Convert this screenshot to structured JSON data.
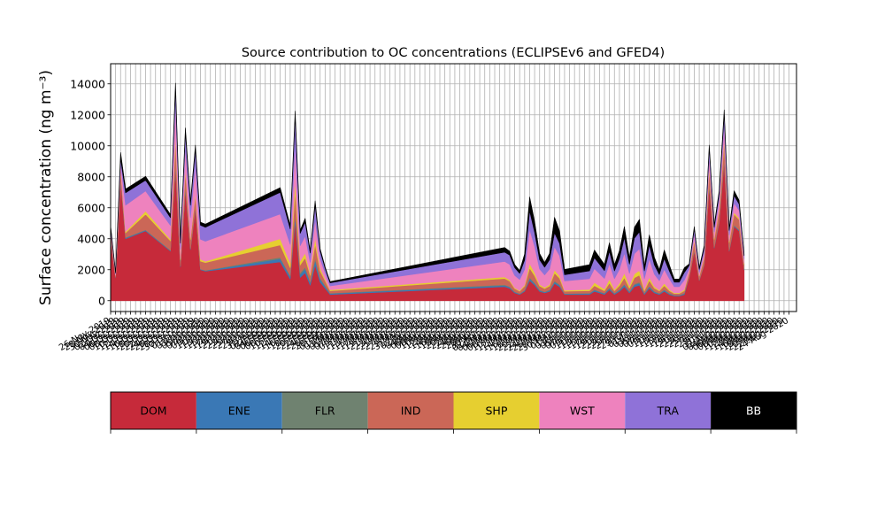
{
  "chart_data": {
    "type": "area",
    "title": "Source contribution to OC concentrations (ECLIPSEv6 and GFED4)",
    "xlabel": "",
    "ylabel": "Surface concentration (ng m⁻³)",
    "ylim": [
      -700,
      15300
    ],
    "yticks": [
      0,
      2000,
      4000,
      6000,
      8000,
      10000,
      12000,
      14000
    ],
    "grid": true,
    "stacked": true,
    "x_tick_labels_note": "dense overlapping rotated date labels",
    "x_tick_labels": [
      "26-Nov-2019",
      "28-Nov-2019",
      "30-Nov-2019",
      "02-Dec-2019",
      "04-Dec-2019",
      "06-Dec-2019",
      "08-Dec-2019",
      "10-Dec-2019",
      "12-Dec-2019",
      "14-Dec-2019",
      "16-Dec-2019",
      "18-Dec-2019",
      "20-Dec-2019",
      "22-Dec-2019",
      "24-Dec-2019",
      "26-Dec-2019",
      "28-Dec-2019",
      "30-Dec-2019",
      "01-Jan-2020",
      "03-Jan-2020",
      "05-Jan-2020",
      "07-Jan-2020",
      "09-Jan-2020",
      "11-Jan-2020",
      "13-Jan-2020",
      "15-Jan-2020",
      "17-Jan-2020",
      "19-Jan-2020",
      "21-Jan-2020",
      "23-Jan-2020",
      "25-Jan-2020",
      "27-Jan-2020",
      "29-Jan-2020",
      "31-Jan-2020",
      "02-Feb-2020",
      "04-Feb-2020",
      "06-Feb-2020",
      "08-Feb-2020",
      "10-Feb-2020",
      "12-Feb-2020",
      "14-Feb-2020",
      "16-Feb-2020",
      "18-Feb-2020",
      "20-Feb-2020",
      "22-Feb-2020",
      "24-Feb-2020",
      "26-Feb-2020",
      "28-Feb-2020",
      "01-Mar-2020",
      "03-Mar-2020",
      "05-Mar-2020",
      "07-Mar-2020",
      "09-Mar-2020",
      "11-Mar-2020",
      "13-Mar-2020",
      "15-Mar-2020",
      "17-Mar-2020",
      "19-Mar-2020",
      "21-Mar-2020",
      "23-Mar-2020",
      "25-Mar-2020",
      "27-Mar-2020",
      "29-Mar-2020",
      "31-Mar-2020",
      "02-Apr-2020",
      "04-Apr-2020",
      "06-Apr-2020",
      "08-Apr-2020",
      "10-Apr-2020",
      "12-Apr-2020",
      "14-Apr-2020",
      "16-Apr-2020",
      "18-Apr-2020",
      "20-Apr-2020",
      "22-Apr-2020",
      "24-Apr-2020",
      "26-Apr-2020",
      "28-Apr-2020",
      "30-Apr-2020",
      "02-May-2020",
      "04-May-2020",
      "06-May-2020",
      "08-May-2020",
      "10-May-2020",
      "12-May-2020",
      "14-May-2020",
      "16-May-2020",
      "18-May-2020",
      "20-May-2020",
      "22-May-2020",
      "24-May-2020",
      "26-May-2020",
      "28-May-2020",
      "30-May-2020",
      "01-Jun-2020",
      "03-Jun-2020",
      "05-Jun-2020",
      "07-Jun-2020",
      "09-Jun-2020",
      "11-Jun-2020",
      "13-Jun-2020",
      "15-Jun-2020",
      "17-Jun-2020",
      "19-Jun-2020",
      "21-Jun-2020",
      "23-Jun-2020",
      "25-Jun-2020",
      "27-Jun-2020",
      "29-Jun-2020",
      "01-Jul-2020",
      "03-Jul-2020",
      "05-Jul-2020",
      "07-Jul-2020",
      "09-Jul-2020",
      "11-Jul-2020",
      "13-Jul-2020",
      "15-Jul-2020",
      "17-Jul-2020",
      "19-Jul-2020",
      "21-Jul-2020",
      "23-Jul-2020",
      "25-Jul-2020",
      "27-Jul-2020",
      "29-Jul-2020",
      "31-Jul-2020",
      "02-Aug-2020",
      "04-Aug-2020",
      "06-Aug-2020",
      "08-Aug-2020",
      "10-Aug-2020",
      "12-Aug-2020",
      "14-Aug-2020",
      "16-Aug-2020",
      "18-Aug-2020",
      "20-Aug-2020",
      "22-Aug-2020",
      "24-Aug-2020"
    ],
    "x": [
      "26-Nov-2019",
      "28-Nov-2019",
      "30-Nov-2019",
      "02-Dec-2019",
      "10-Dec-2019",
      "20-Dec-2019",
      "22-Dec-2019",
      "24-Dec-2019",
      "26-Dec-2019",
      "28-Dec-2019",
      "30-Dec-2019",
      "01-Jan-2020",
      "03-Jan-2020",
      "02-Feb-2020",
      "06-Feb-2020",
      "08-Feb-2020",
      "10-Feb-2020",
      "12-Feb-2020",
      "14-Feb-2020",
      "16-Feb-2020",
      "18-Feb-2020",
      "20-Feb-2020",
      "22-Feb-2020",
      "02-May-2020",
      "04-May-2020",
      "06-May-2020",
      "08-May-2020",
      "10-May-2020",
      "12-May-2020",
      "14-May-2020",
      "16-May-2020",
      "18-May-2020",
      "20-May-2020",
      "22-May-2020",
      "24-May-2020",
      "26-May-2020",
      "05-Jun-2020",
      "07-Jun-2020",
      "09-Jun-2020",
      "11-Jun-2020",
      "13-Jun-2020",
      "15-Jun-2020",
      "17-Jun-2020",
      "19-Jun-2020",
      "21-Jun-2020",
      "23-Jun-2020",
      "25-Jun-2020",
      "27-Jun-2020",
      "29-Jun-2020",
      "01-Jul-2020",
      "03-Jul-2020",
      "05-Jul-2020",
      "07-Jul-2020",
      "09-Jul-2020",
      "11-Jul-2020",
      "13-Jul-2020",
      "15-Jul-2020",
      "17-Jul-2020",
      "19-Jul-2020",
      "21-Jul-2020",
      "23-Jul-2020",
      "25-Jul-2020",
      "27-Jul-2020",
      "29-Jul-2020",
      "31-Jul-2020",
      "02-Aug-2020",
      "04-Aug-2020",
      "06-Aug-2020"
    ],
    "series": [
      {
        "name": "DOM",
        "color": "#c62a3a",
        "values": [
          4000,
          1500,
          7700,
          4000,
          4500,
          3200,
          8600,
          2200,
          7200,
          3300,
          5900,
          2000,
          1900,
          2500,
          1400,
          5100,
          1500,
          1800,
          1000,
          2300,
          1200,
          800,
          400,
          900,
          800,
          500,
          400,
          600,
          1300,
          1000,
          600,
          500,
          600,
          1100,
          900,
          400,
          400,
          600,
          500,
          400,
          700,
          400,
          600,
          900,
          500,
          900,
          1000,
          400,
          800,
          500,
          400,
          600,
          400,
          300,
          300,
          400,
          1500,
          3200,
          1300,
          2300,
          7400,
          3400,
          5000,
          9000,
          3200,
          4800,
          4500,
          2000
        ]
      },
      {
        "name": "ENE",
        "color": "#3a78b5",
        "values": [
          50,
          20,
          80,
          50,
          50,
          40,
          90,
          30,
          80,
          40,
          60,
          30,
          40,
          200,
          150,
          300,
          200,
          250,
          150,
          300,
          180,
          120,
          60,
          80,
          70,
          50,
          40,
          60,
          120,
          100,
          60,
          50,
          60,
          110,
          90,
          40,
          60,
          80,
          70,
          60,
          90,
          60,
          80,
          120,
          70,
          120,
          130,
          60,
          100,
          70,
          50,
          80,
          60,
          40,
          40,
          60,
          20,
          30,
          20,
          30,
          60,
          40,
          50,
          70,
          40,
          50,
          50,
          30
        ]
      },
      {
        "name": "FLR",
        "color": "#6f8270",
        "values": [
          30,
          10,
          50,
          30,
          30,
          20,
          60,
          20,
          50,
          20,
          40,
          20,
          20,
          100,
          80,
          150,
          100,
          120,
          80,
          150,
          90,
          60,
          30,
          50,
          40,
          30,
          20,
          30,
          80,
          60,
          40,
          30,
          40,
          70,
          60,
          20,
          30,
          40,
          30,
          30,
          50,
          30,
          40,
          60,
          40,
          60,
          70,
          30,
          50,
          40,
          30,
          40,
          30,
          20,
          20,
          30,
          10,
          20,
          10,
          20,
          40,
          20,
          30,
          50,
          20,
          30,
          30,
          20
        ]
      },
      {
        "name": "IND",
        "color": "#cb6757",
        "values": [
          300,
          100,
          600,
          300,
          1000,
          600,
          1600,
          400,
          1000,
          600,
          800,
          500,
          500,
          800,
          500,
          1500,
          500,
          600,
          400,
          900,
          450,
          300,
          150,
          400,
          350,
          200,
          150,
          250,
          600,
          450,
          250,
          200,
          250,
          500,
          400,
          150,
          150,
          250,
          200,
          150,
          300,
          150,
          250,
          400,
          200,
          400,
          450,
          150,
          350,
          200,
          150,
          250,
          150,
          100,
          100,
          150,
          300,
          600,
          250,
          400,
          1000,
          500,
          700,
          1100,
          500,
          700,
          650,
          300
        ]
      },
      {
        "name": "SHP",
        "color": "#e6cf30",
        "values": [
          20,
          10,
          40,
          80,
          200,
          100,
          300,
          60,
          180,
          100,
          150,
          120,
          80,
          400,
          300,
          700,
          250,
          300,
          150,
          400,
          200,
          100,
          60,
          100,
          80,
          60,
          50,
          80,
          300,
          200,
          100,
          80,
          100,
          200,
          150,
          60,
          80,
          200,
          150,
          100,
          250,
          80,
          150,
          300,
          150,
          250,
          300,
          80,
          200,
          100,
          60,
          150,
          80,
          40,
          40,
          80,
          40,
          80,
          40,
          60,
          150,
          80,
          100,
          200,
          80,
          120,
          100,
          60
        ]
      },
      {
        "name": "WST",
        "color": "#ee82be",
        "values": [
          200,
          100,
          400,
          1700,
          1300,
          900,
          2000,
          600,
          1400,
          1300,
          1800,
          1300,
          1300,
          1600,
          1200,
          2300,
          1000,
          1100,
          700,
          1200,
          600,
          400,
          250,
          1000,
          1000,
          800,
          700,
          1000,
          2200,
          1700,
          1000,
          800,
          1000,
          1500,
          1300,
          600,
          700,
          900,
          800,
          700,
          1000,
          700,
          900,
          1300,
          800,
          1300,
          1400,
          700,
          1200,
          800,
          600,
          900,
          700,
          400,
          400,
          600,
          200,
          400,
          200,
          300,
          700,
          400,
          600,
          900,
          400,
          600,
          500,
          300
        ]
      },
      {
        "name": "TRA",
        "color": "#8f72d8",
        "values": [
          150,
          50,
          300,
          800,
          700,
          500,
          1000,
          400,
          900,
          800,
          1000,
          900,
          900,
          1400,
          1000,
          1800,
          800,
          900,
          600,
          900,
          500,
          300,
          200,
          600,
          600,
          500,
          400,
          600,
          1200,
          900,
          600,
          500,
          600,
          900,
          800,
          400,
          500,
          700,
          600,
          500,
          800,
          500,
          700,
          1000,
          600,
          1000,
          1100,
          500,
          900,
          600,
          400,
          700,
          500,
          300,
          300,
          500,
          200,
          300,
          200,
          300,
          500,
          300,
          400,
          700,
          300,
          500,
          400,
          200
        ]
      },
      {
        "name": "BB",
        "color": "#000000",
        "values": [
          100,
          50,
          400,
          250,
          250,
          200,
          400,
          150,
          350,
          200,
          300,
          200,
          200,
          300,
          250,
          400,
          200,
          250,
          150,
          300,
          150,
          100,
          80,
          300,
          250,
          200,
          180,
          400,
          900,
          700,
          400,
          300,
          400,
          1000,
          800,
          350,
          400,
          500,
          450,
          400,
          550,
          400,
          500,
          700,
          400,
          700,
          800,
          300,
          650,
          500,
          300,
          550,
          400,
          200,
          200,
          300,
          100,
          150,
          100,
          150,
          200,
          150,
          200,
          300,
          150,
          300,
          250,
          100
        ]
      }
    ],
    "legend": {
      "placement": "bottom",
      "entries": [
        "DOM",
        "ENE",
        "FLR",
        "IND",
        "SHP",
        "WST",
        "TRA",
        "BB"
      ],
      "text_colors": [
        "#000000",
        "#000000",
        "#000000",
        "#000000",
        "#000000",
        "#000000",
        "#000000",
        "#ffffff"
      ]
    }
  }
}
